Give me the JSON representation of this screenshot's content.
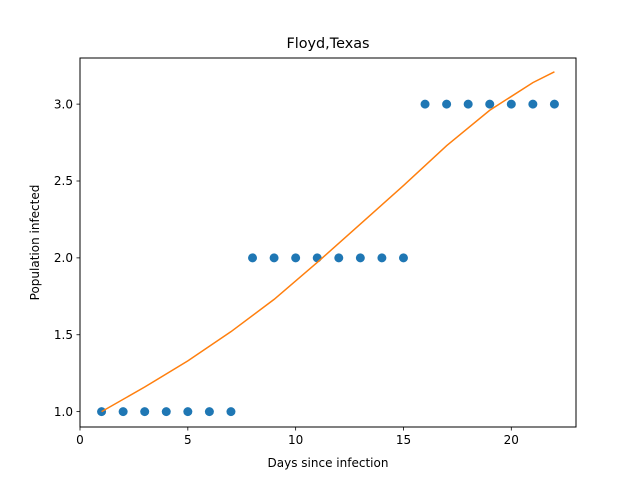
{
  "chart_data": {
    "type": "scatter",
    "title": "Floyd,Texas",
    "xlabel": "Days since infection",
    "ylabel": "Population infected",
    "xlim": [
      0,
      23
    ],
    "ylim": [
      0.9,
      3.3
    ],
    "xticks": [
      0,
      5,
      10,
      15,
      20
    ],
    "yticks": [
      1.0,
      1.5,
      2.0,
      2.5,
      3.0
    ],
    "xtick_labels": [
      "0",
      "5",
      "10",
      "15",
      "20"
    ],
    "ytick_labels": [
      "1.0",
      "1.5",
      "2.0",
      "2.5",
      "3.0"
    ],
    "grid": false,
    "series": [
      {
        "type": "scatter",
        "color": "#1f77b4",
        "x": [
          1,
          2,
          3,
          4,
          5,
          6,
          7,
          8,
          9,
          10,
          11,
          12,
          13,
          14,
          15,
          16,
          17,
          18,
          19,
          20,
          21,
          22
        ],
        "y": [
          1,
          1,
          1,
          1,
          1,
          1,
          1,
          2,
          2,
          2,
          2,
          2,
          2,
          2,
          2,
          3,
          3,
          3,
          3,
          3,
          3,
          3
        ]
      },
      {
        "type": "line",
        "color": "#ff7f0e",
        "x": [
          1,
          3,
          5,
          7,
          9,
          11,
          13,
          15,
          17,
          19,
          21,
          22
        ],
        "y": [
          1.0,
          1.16,
          1.33,
          1.52,
          1.73,
          1.97,
          2.22,
          2.47,
          2.73,
          2.96,
          3.14,
          3.21
        ]
      }
    ]
  }
}
